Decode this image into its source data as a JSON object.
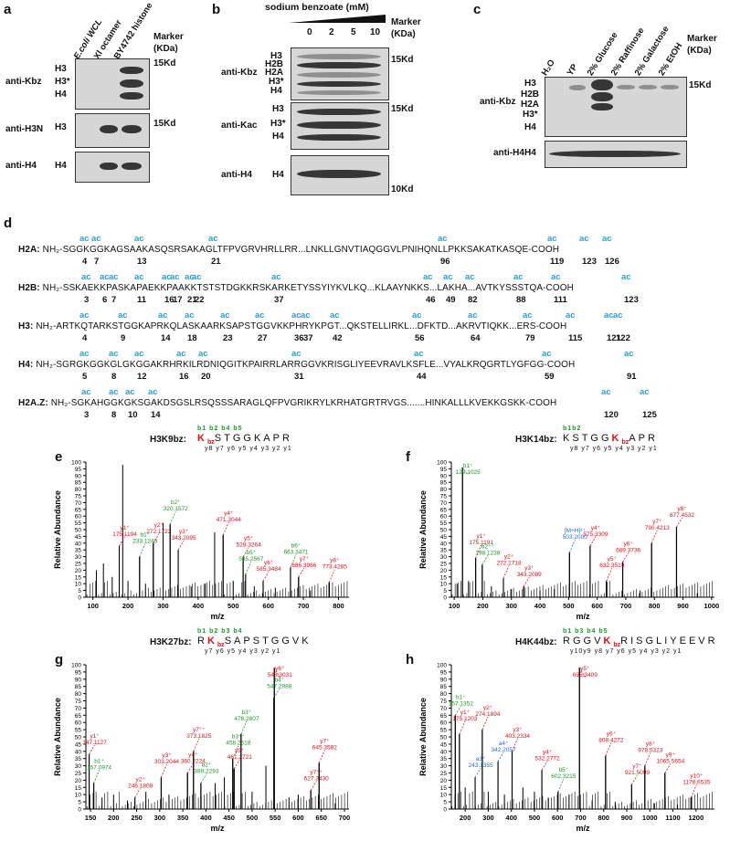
{
  "panels": {
    "a": {
      "letter": "a",
      "lanes": [
        "E.coli WCL",
        "Xl octamer",
        "BY4742 histone"
      ],
      "marker_label": "Marker\n(KDa)",
      "blots": [
        {
          "antibody": "anti-Kbz",
          "bands": [
            "H3",
            "H3*",
            "H4"
          ],
          "marker": "15Kd"
        },
        {
          "antibody": "anti-H3N",
          "bands": [
            "H3"
          ],
          "marker": "15Kd"
        },
        {
          "antibody": "anti-H4",
          "bands": [
            "H4"
          ],
          "marker": ""
        }
      ]
    },
    "b": {
      "letter": "b",
      "treatment": "sodium benzoate (mM)",
      "conc": [
        "0",
        "2",
        "5",
        "10"
      ],
      "marker_label": "Marker\n(KDa)",
      "blots": [
        {
          "antibody": "anti-Kbz",
          "bands": [
            "H3",
            "H2B",
            "H2A",
            "H3*",
            "H4"
          ],
          "marker": "15Kd"
        },
        {
          "antibody": "anti-Kac",
          "bands": [
            "H3",
            "H3*",
            "H4"
          ],
          "marker": "15Kd"
        },
        {
          "antibody": "anti-H4",
          "bands": [
            "H4"
          ],
          "marker": "10Kd"
        }
      ]
    },
    "c": {
      "letter": "c",
      "lanes": [
        "H₂O",
        "YP",
        "2% Glucose",
        "2% Raffinose",
        "2% Galactose",
        "2% EtOH"
      ],
      "marker_label": "Marker\n(KDa)",
      "blots": [
        {
          "antibody": "anti-Kbz",
          "bands": [
            "H3",
            "H2B",
            "H2A",
            "H3*",
            "H4"
          ],
          "marker": "15Kd"
        },
        {
          "antibody": "anti-H4",
          "bands": [
            "H4"
          ],
          "marker": ""
        }
      ]
    },
    "d": {
      "letter": "d",
      "ac": "ac",
      "rows": [
        {
          "name": "H2A:",
          "seq": "NH₂-SGGKGGKAGSAAKASQSRSAKAGLTFPVGRVHRLLRR...LNKLLGNVTIAQGGVLPNIHQNLLPKKSAKATKASQE-COOH",
          "positions": [
            "4",
            "7",
            "13",
            "21",
            "96",
            "119",
            "123",
            "126"
          ]
        },
        {
          "name": "H2B:",
          "seq": "NH₂-SSKAEKKPASKAPAEKKPAAKKTSTSTDGKKRSKARKETYSSYIYKVLKQ...KLAAYNKKS...LAKHA...AVTKYSSSTQA-COOH",
          "positions": [
            "3",
            "6",
            "7",
            "11",
            "16",
            "17",
            "21",
            "22",
            "37",
            "46",
            "49",
            "82",
            "88",
            "111",
            "123"
          ]
        },
        {
          "name": "H3:",
          "seq": "NH₂-ARTKQTARKSTGGKAPRKQLASKAARKSAPSTGGVKKPHRYKPGT...QKSTELLIRKL...DFKTD...AKRVTIQKK...ERS-COOH",
          "positions": [
            "4",
            "9",
            "14",
            "18",
            "23",
            "27",
            "36",
            "37",
            "42",
            "56",
            "64",
            "79",
            "115",
            "121",
            "122"
          ]
        },
        {
          "name": "H4:",
          "seq": "NH₂-SGRGKGGKGLGKGGAKRHRKILRDNIQGITKPAIRRLARRGGVKRISGLIYEEVRAVLKSFLE...VYALKRQGRTLYGFGG-COOH",
          "positions": [
            "5",
            "8",
            "12",
            "16",
            "20",
            "31",
            "44",
            "59",
            "91"
          ]
        },
        {
          "name": "H2A.Z:",
          "seq": "NH₂-SGKAHGGKGKSGAKDSGSLRSQSSSARAGLQFPVGRIKRYLKRHATGRTRVGS.......HINKALLLKVEKKGSKK-COOH",
          "positions": [
            "3",
            "8",
            "10",
            "14",
            "120",
            "125"
          ]
        }
      ]
    }
  },
  "spectra": [
    {
      "letter": "e",
      "title": "H3K9bz:",
      "peptide": [
        "Kbz",
        "S",
        "T",
        "G",
        "G",
        "K",
        "A",
        "P",
        "R"
      ],
      "b_ions": "b1 b2   b4 b5",
      "y_ions": "y8 y7 y6 y5 y4 y3 y2 y1",
      "ylabel": "Relative Abundance",
      "xlabel": "m/z",
      "yticks": [
        "0",
        "5",
        "10",
        "15",
        "20",
        "25",
        "30",
        "35",
        "40",
        "45",
        "50",
        "55",
        "60",
        "65",
        "70",
        "75",
        "80",
        "85",
        "90",
        "95",
        "100"
      ],
      "xticks": [
        "100",
        "200",
        "300",
        "400",
        "500",
        "600",
        "700",
        "800"
      ]
    },
    {
      "letter": "f",
      "title": "H3K14bz:",
      "peptide": [
        "K",
        "S",
        "T",
        "G",
        "G",
        "Kbz",
        "A",
        "P",
        "R"
      ],
      "b_ions": "b1b2",
      "y_ions": "y8 y7 y6 y5 y4 y3 y2 y1",
      "ylabel": "Relative Abundance",
      "xlabel": "m/z",
      "yticks": [
        "0",
        "5",
        "10",
        "15",
        "20",
        "25",
        "30",
        "35",
        "40",
        "45",
        "50",
        "55",
        "60",
        "65",
        "70",
        "75",
        "80",
        "85",
        "90",
        "95",
        "100"
      ],
      "xticks": [
        "100",
        "200",
        "300",
        "400",
        "500",
        "600",
        "700",
        "800",
        "900",
        "1000"
      ]
    },
    {
      "letter": "g",
      "title": "H3K27bz:",
      "peptide": [
        "R",
        "Kbz",
        "S",
        "A",
        "P",
        "S",
        "T",
        "G",
        "G",
        "V",
        "K"
      ],
      "b_ions": "b1 b2 b3 b4",
      "y_ions": "y7 y6 y5 y4 y3 y2 y1",
      "ylabel": "Relative Abundance",
      "xlabel": "m/z",
      "yticks": [
        "0",
        "5",
        "10",
        "15",
        "20",
        "25",
        "30",
        "35",
        "40",
        "45",
        "50",
        "55",
        "60",
        "65",
        "70",
        "75",
        "80",
        "85",
        "90",
        "95",
        "100"
      ],
      "xticks": [
        "150",
        "200",
        "250",
        "300",
        "350",
        "400",
        "450",
        "500",
        "550",
        "600",
        "650",
        "700"
      ]
    },
    {
      "letter": "h",
      "title": "H4K44bz:",
      "peptide": [
        "R",
        "G",
        "G",
        "V",
        "Kbz",
        "R",
        "I",
        "S",
        "G",
        "L",
        "I",
        "Y",
        "E",
        "E",
        "V",
        "R"
      ],
      "b_ions": "b1  b3 b4 b5",
      "y_ions": "y10y9 y8 y7 y6 y5 y4 y3 y2 y1",
      "ylabel": "Relative Abundance",
      "xlabel": "m/z",
      "yticks": [
        "0",
        "5",
        "10",
        "15",
        "20",
        "25",
        "30",
        "35",
        "40",
        "45",
        "50",
        "55",
        "60",
        "65",
        "70",
        "75",
        "80",
        "85",
        "90",
        "95",
        "100"
      ],
      "xticks": [
        "200",
        "300",
        "400",
        "500",
        "600",
        "700",
        "800",
        "900",
        "1000",
        "1100",
        "1200"
      ]
    }
  ],
  "chart_data": [
    {
      "type": "bar",
      "title": "H3K9bz:",
      "xlabel": "m/z",
      "ylabel": "Relative Abundance",
      "xlim": [
        80,
        830
      ],
      "ylim": [
        0,
        100
      ],
      "peaks": [
        {
          "mz": 175.1194,
          "intensity": 38,
          "label": "y1⁺",
          "ion": "y"
        },
        {
          "mz": 233.1249,
          "intensity": 30,
          "label": "b1⁺",
          "ion": "b"
        },
        {
          "mz": 272.1722,
          "intensity": 40,
          "label": "y2⁺",
          "ion": "y"
        },
        {
          "mz": 320.1572,
          "intensity": 54,
          "label": "b2⁺",
          "ion": "b"
        },
        {
          "mz": 343.2095,
          "intensity": 35,
          "label": "y3⁺",
          "ion": "y"
        },
        {
          "mz": 471.3044,
          "intensity": 46,
          "label": "y4⁺",
          "ion": "y"
        },
        {
          "mz": 528.3264,
          "intensity": 30,
          "label": "y5⁺",
          "ion": "y"
        },
        {
          "mz": 535.2567,
          "intensity": 17,
          "label": "b5⁺",
          "ion": "b"
        },
        {
          "mz": 585.3484,
          "intensity": 12,
          "label": "y6⁺",
          "ion": "y"
        },
        {
          "mz": 663.3471,
          "intensity": 22,
          "label": "b6⁺",
          "ion": "b"
        },
        {
          "mz": 686.3966,
          "intensity": 15,
          "label": "y7⁺",
          "ion": "y"
        },
        {
          "mz": 773.4285,
          "intensity": 11,
          "label": "y8⁺",
          "ion": "y"
        }
      ],
      "background_peaks": [
        [
          110,
          20
        ],
        [
          130,
          25
        ],
        [
          155,
          15
        ],
        [
          175,
          38
        ],
        [
          185,
          98
        ],
        [
          200,
          12
        ],
        [
          233,
          30
        ],
        [
          250,
          10
        ],
        [
          272,
          40
        ],
        [
          300,
          55
        ],
        [
          320,
          54
        ],
        [
          343,
          35
        ],
        [
          380,
          8
        ],
        [
          420,
          10
        ],
        [
          447,
          48
        ],
        [
          471,
          46
        ],
        [
          500,
          12
        ],
        [
          528,
          30
        ],
        [
          560,
          8
        ],
        [
          585,
          12
        ],
        [
          620,
          7
        ],
        [
          663,
          22
        ],
        [
          686,
          15
        ],
        [
          720,
          5
        ],
        [
          773,
          11
        ]
      ]
    },
    {
      "type": "bar",
      "title": "H3K14bz:",
      "xlabel": "m/z",
      "ylabel": "Relative Abundance",
      "xlim": [
        90,
        1010
      ],
      "ylim": [
        0,
        100
      ],
      "peaks": [
        {
          "mz": 129.1025,
          "intensity": 96,
          "label": "b1⁺",
          "ion": "b"
        },
        {
          "mz": 175.1191,
          "intensity": 29,
          "label": "y1⁺",
          "ion": "y"
        },
        {
          "mz": 198.1238,
          "intensity": 24,
          "label": "b2⁺⁺",
          "ion": "b"
        },
        {
          "mz": 272.1718,
          "intensity": 14,
          "label": "y2⁺",
          "ion": "y"
        },
        {
          "mz": 343.2089,
          "intensity": 8,
          "label": "y3⁺",
          "ion": "y"
        },
        {
          "mz": 503.2,
          "intensity": 33,
          "label": "[M+H]²⁺",
          "ion": "m"
        },
        {
          "mz": 575.3309,
          "intensity": 38,
          "label": "y4⁺",
          "ion": "y"
        },
        {
          "mz": 632.3519,
          "intensity": 12,
          "label": "y5⁺",
          "ion": "y"
        },
        {
          "mz": 689.3736,
          "intensity": 26,
          "label": "y6⁺",
          "ion": "y"
        },
        {
          "mz": 790.4213,
          "intensity": 40,
          "label": "y7⁺",
          "ion": "y"
        },
        {
          "mz": 877.4532,
          "intensity": 52,
          "label": "y8⁺",
          "ion": "y"
        }
      ],
      "background_peaks": [
        [
          110,
          10
        ],
        [
          129,
          96
        ],
        [
          150,
          12
        ],
        [
          175,
          29
        ],
        [
          198,
          24
        ],
        [
          230,
          8
        ],
        [
          272,
          14
        ],
        [
          300,
          6
        ],
        [
          343,
          8
        ],
        [
          400,
          5
        ],
        [
          450,
          6
        ],
        [
          503,
          33
        ],
        [
          575,
          38
        ],
        [
          632,
          12
        ],
        [
          689,
          26
        ],
        [
          750,
          5
        ],
        [
          790,
          40
        ],
        [
          877,
          52
        ],
        [
          950,
          3
        ]
      ]
    },
    {
      "type": "bar",
      "title": "H3K27bz:",
      "xlabel": "m/z",
      "ylabel": "Relative Abundance",
      "xlim": [
        140,
        710
      ],
      "ylim": [
        0,
        100
      ],
      "peaks": [
        {
          "mz": 147.1127,
          "intensity": 38,
          "label": "y1⁺",
          "ion": "y"
        },
        {
          "mz": 157.0974,
          "intensity": 18,
          "label": "b1⁺",
          "ion": "b"
        },
        {
          "mz": 246.1808,
          "intensity": 8,
          "label": "y2⁺",
          "ion": "y"
        },
        {
          "mz": 303.2044,
          "intensity": 22,
          "label": "y3⁺",
          "ion": "y"
        },
        {
          "mz": 360.2224,
          "intensity": 25,
          "label": "y4⁺",
          "ion": "y"
        },
        {
          "mz": 373.1825,
          "intensity": 40,
          "label": "y7⁺⁺",
          "ion": "y"
        },
        {
          "mz": 389.2293,
          "intensity": 18,
          "label": "b2⁺",
          "ion": "b"
        },
        {
          "mz": 458.2518,
          "intensity": 35,
          "label": "b3⁺⁺",
          "ion": "b"
        },
        {
          "mz": 461.2721,
          "intensity": 28,
          "label": "y5⁺",
          "ion": "y"
        },
        {
          "mz": 476.2607,
          "intensity": 52,
          "label": "b3⁺",
          "ion": "b"
        },
        {
          "mz": 547.2988,
          "intensity": 77,
          "label": "b4⁺",
          "ion": "b"
        },
        {
          "mz": 548.3031,
          "intensity": 98,
          "label": "y6⁺",
          "ion": "y"
        },
        {
          "mz": 627.343,
          "intensity": 13,
          "label": "y7⁺⁺",
          "ion": "y"
        },
        {
          "mz": 645.3582,
          "intensity": 32,
          "label": "y7⁺",
          "ion": "y"
        }
      ],
      "background_peaks": [
        [
          147,
          38
        ],
        [
          157,
          18
        ],
        [
          175,
          8
        ],
        [
          200,
          10
        ],
        [
          230,
          6
        ],
        [
          246,
          8
        ],
        [
          270,
          12
        ],
        [
          303,
          22
        ],
        [
          320,
          10
        ],
        [
          360,
          25
        ],
        [
          373,
          40
        ],
        [
          389,
          18
        ],
        [
          420,
          18
        ],
        [
          440,
          22
        ],
        [
          458,
          35
        ],
        [
          461,
          28
        ],
        [
          476,
          52
        ],
        [
          500,
          12
        ],
        [
          530,
          30
        ],
        [
          547,
          77
        ],
        [
          548,
          98
        ],
        [
          580,
          8
        ],
        [
          600,
          10
        ],
        [
          627,
          13
        ],
        [
          645,
          32
        ],
        [
          680,
          4
        ]
      ]
    },
    {
      "type": "bar",
      "title": "H4K44bz:",
      "xlabel": "m/z",
      "ylabel": "Relative Abundance",
      "xlim": [
        140,
        1280
      ],
      "ylim": [
        0,
        100
      ],
      "peaks": [
        {
          "mz": 157.1352,
          "intensity": 65,
          "label": "b1⁺",
          "ion": "b"
        },
        {
          "mz": 175.1203,
          "intensity": 52,
          "label": "y1⁺",
          "ion": "y"
        },
        {
          "mz": 243.1355,
          "intensity": 22,
          "label": "a3⁺",
          "ion": "a"
        },
        {
          "mz": 274.1894,
          "intensity": 55,
          "label": "y2⁺",
          "ion": "y"
        },
        {
          "mz": 342.2057,
          "intensity": 33,
          "label": "a4⁺",
          "ion": "a"
        },
        {
          "mz": 403.2334,
          "intensity": 40,
          "label": "y3⁺",
          "ion": "y"
        },
        {
          "mz": 532.2772,
          "intensity": 27,
          "label": "y4⁺",
          "ion": "y"
        },
        {
          "mz": 602.3215,
          "intensity": 12,
          "label": "b5⁺",
          "ion": "b"
        },
        {
          "mz": 695.3409,
          "intensity": 98,
          "label": "y5⁺",
          "ion": "y"
        },
        {
          "mz": 808.4272,
          "intensity": 37,
          "label": "y6⁺",
          "ion": "y"
        },
        {
          "mz": 921.5099,
          "intensity": 17,
          "label": "y7⁺",
          "ion": "y"
        },
        {
          "mz": 978.5323,
          "intensity": 30,
          "label": "y8⁺",
          "ion": "y"
        },
        {
          "mz": 1065.5654,
          "intensity": 25,
          "label": "y9⁺",
          "ion": "y"
        },
        {
          "mz": 1178.6535,
          "intensity": 8,
          "label": "y10⁺",
          "ion": "y"
        }
      ],
      "background_peaks": [
        [
          157,
          65
        ],
        [
          175,
          52
        ],
        [
          200,
          15
        ],
        [
          243,
          22
        ],
        [
          274,
          55
        ],
        [
          300,
          12
        ],
        [
          342,
          33
        ],
        [
          370,
          10
        ],
        [
          403,
          40
        ],
        [
          450,
          15
        ],
        [
          500,
          12
        ],
        [
          532,
          27
        ],
        [
          560,
          8
        ],
        [
          602,
          12
        ],
        [
          650,
          10
        ],
        [
          695,
          98
        ],
        [
          750,
          6
        ],
        [
          808,
          37
        ],
        [
          850,
          5
        ],
        [
          921,
          17
        ],
        [
          978,
          30
        ],
        [
          1020,
          4
        ],
        [
          1065,
          25
        ],
        [
          1120,
          3
        ],
        [
          1178,
          8
        ]
      ]
    }
  ]
}
